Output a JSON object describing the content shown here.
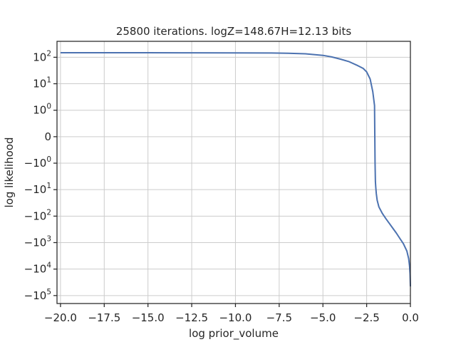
{
  "chart_data": {
    "type": "line",
    "title": "25800 iterations. logZ=148.67H=12.13 bits",
    "xlabel": "log prior_volume",
    "ylabel": "log likelihood",
    "xlim": [
      -20.2,
      0
    ],
    "yscale": "symlog",
    "ylim": [
      -200000,
      400
    ],
    "grid": true,
    "line_color": "#4c72b0",
    "x_ticks": [
      {
        "value": -20.0,
        "label": "−20.0"
      },
      {
        "value": -17.5,
        "label": "−17.5"
      },
      {
        "value": -15.0,
        "label": "−15.0"
      },
      {
        "value": -12.5,
        "label": "−12.5"
      },
      {
        "value": -10.0,
        "label": "−10.0"
      },
      {
        "value": -7.5,
        "label": "−7.5"
      },
      {
        "value": -5.0,
        "label": "−5.0"
      },
      {
        "value": -2.5,
        "label": "−2.5"
      },
      {
        "value": 0.0,
        "label": "0.0"
      }
    ],
    "y_ticks": [
      {
        "value": 100,
        "base": "10",
        "exp": "2"
      },
      {
        "value": 10,
        "base": "10",
        "exp": "1"
      },
      {
        "value": 1,
        "base": "10",
        "exp": "0"
      },
      {
        "value": 0,
        "base": "0",
        "exp": ""
      },
      {
        "value": -1,
        "base": "−10",
        "exp": "0"
      },
      {
        "value": -10,
        "base": "−10",
        "exp": "1"
      },
      {
        "value": -100,
        "base": "−10",
        "exp": "2"
      },
      {
        "value": -1000,
        "base": "−10",
        "exp": "3"
      },
      {
        "value": -10000,
        "base": "−10",
        "exp": "4"
      },
      {
        "value": -100000,
        "base": "−10",
        "exp": "5"
      }
    ],
    "series": [
      {
        "x": [
          -20.0,
          -17.5,
          -15.0,
          -12.5,
          -10.0,
          -8.0,
          -7.0,
          -6.0,
          -5.0,
          -4.5,
          -4.0,
          -3.5,
          -3.0,
          -2.7,
          -2.5,
          -2.3,
          -2.15,
          -2.05,
          -2.02,
          -2.0,
          -1.98,
          -1.95,
          -1.9,
          -1.8,
          -1.6,
          -1.4,
          -1.2,
          -1.0,
          -0.8,
          -0.6,
          -0.4,
          -0.2,
          -0.1,
          -0.05,
          -0.02,
          0.0
        ],
        "y": [
          148,
          148,
          148,
          147,
          146,
          145,
          142,
          135,
          118,
          103,
          85,
          68,
          48,
          38,
          28,
          15,
          5,
          1.5,
          -1,
          -5,
          -8,
          -14,
          -25,
          -45,
          -80,
          -125,
          -190,
          -290,
          -440,
          -700,
          -1100,
          -2100,
          -4000,
          -7500,
          -15000,
          -45000
        ]
      }
    ]
  }
}
